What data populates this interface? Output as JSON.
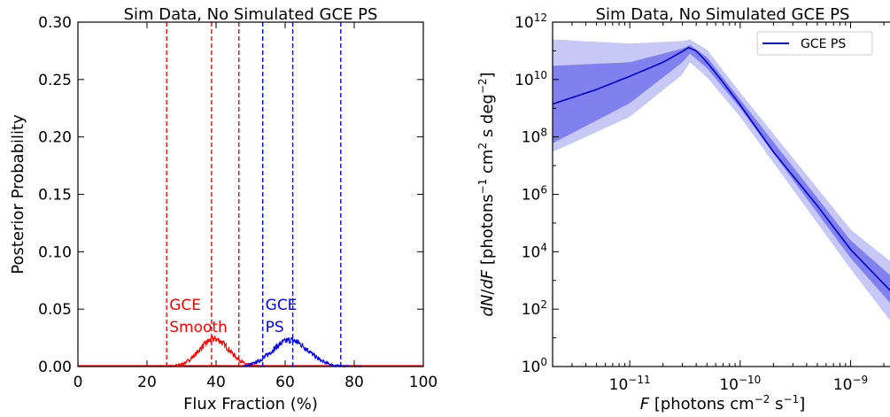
{
  "chart_data": [
    {
      "type": "line",
      "title": "Sim Data, No Simulated GCE PS",
      "xlabel": "Flux Fraction (%)",
      "ylabel": "Posterior Probability",
      "xlim": [
        0,
        100
      ],
      "ylim": [
        0,
        0.3
      ],
      "x_ticks": [
        "0",
        "20",
        "40",
        "60",
        "80",
        "100"
      ],
      "y_ticks": [
        "0.00",
        "0.05",
        "0.10",
        "0.15",
        "0.20",
        "0.25",
        "0.30"
      ],
      "series": [
        {
          "name": "GCE Smooth",
          "color": "#ff0000",
          "mean": 39.5,
          "sd": 4.3,
          "peak": 0.024,
          "range": [
            22,
            56
          ],
          "quantiles": [
            25.7,
            38.7,
            46.6
          ],
          "label_lines": [
            "GCE",
            "Smooth"
          ]
        },
        {
          "name": "GCE PS",
          "color": "#0000ff",
          "mean": 61.5,
          "sd": 5.2,
          "peak": 0.023,
          "range": [
            48,
            82
          ],
          "quantiles": [
            53.5,
            62.2,
            76.1
          ],
          "label_lines": [
            "GCE",
            "PS"
          ]
        }
      ]
    },
    {
      "type": "area",
      "title": "Sim Data, No Simulated GCE PS",
      "xlabel": "F  [photons cm⁻² s⁻¹]",
      "ylabel": "dN/dF [photons⁻¹ cm² s deg⁻²]",
      "xscale": "log",
      "yscale": "log",
      "xlim": [
        2e-12,
        3e-09
      ],
      "ylim": [
        1,
        1000000000000.0
      ],
      "x_ticks": [
        {
          "base": "10",
          "exp": "−11",
          "value": 1e-11
        },
        {
          "base": "10",
          "exp": "−10",
          "value": 1e-10
        },
        {
          "base": "10",
          "exp": "−9",
          "value": 1e-09
        }
      ],
      "y_ticks": [
        {
          "base": "10",
          "exp": "0",
          "value": 1
        },
        {
          "base": "10",
          "exp": "2",
          "value": 100
        },
        {
          "base": "10",
          "exp": "4",
          "value": 10000
        },
        {
          "base": "10",
          "exp": "6",
          "value": 1000000
        },
        {
          "base": "10",
          "exp": "8",
          "value": 100000000
        },
        {
          "base": "10",
          "exp": "10",
          "value": 10000000000
        },
        {
          "base": "10",
          "exp": "12",
          "value": 1000000000000
        }
      ],
      "legend": {
        "label": "GCE PS",
        "position": "top-right"
      },
      "line_color": "#0000cc",
      "band_inner_color": "#8080ee",
      "band_outer_color": "#c8c8f6",
      "median": {
        "x": [
          2e-12,
          5e-12,
          1e-11,
          2e-11,
          3e-11,
          3.4e-11,
          4e-11,
          5e-11,
          7e-11,
          1e-10,
          2e-10,
          5e-10,
          1e-09,
          3e-09
        ],
        "y": [
          1400000000.0,
          4500000000.0,
          13000000000.0,
          40000000000.0,
          95000000000.0,
          130000000000.0,
          100000000000.0,
          40000000000.0,
          8000000000.0,
          1300000000.0,
          30000000.0,
          400000.0,
          12000.0,
          150.0
        ]
      },
      "band_inner": {
        "x": [
          2e-12,
          1e-11,
          3e-11,
          3.5e-11,
          5e-11,
          1e-10,
          1e-09,
          3e-09
        ],
        "lower": [
          60000000.0,
          1500000000.0,
          40000000000.0,
          80000000000.0,
          25000000000.0,
          1000000000.0,
          6000.0,
          50.0
        ],
        "upper": [
          30000000000.0,
          40000000000.0,
          120000000000.0,
          160000000000.0,
          60000000000.0,
          2000000000.0,
          25000.0,
          600.0
        ]
      },
      "band_outer": {
        "x": [
          2e-12,
          1e-11,
          3e-11,
          3.5e-11,
          5e-11,
          1e-10,
          1e-09,
          3e-09
        ],
        "lower": [
          30000000.0,
          500000000.0,
          15000000000.0,
          40000000000.0,
          12000000000.0,
          500000000.0,
          2500.0,
          10.0
        ],
        "upper": [
          250000000000.0,
          180000000000.0,
          220000000000.0,
          250000000000.0,
          110000000000.0,
          3500000000.0,
          60000.0,
          2000.0
        ]
      }
    }
  ]
}
